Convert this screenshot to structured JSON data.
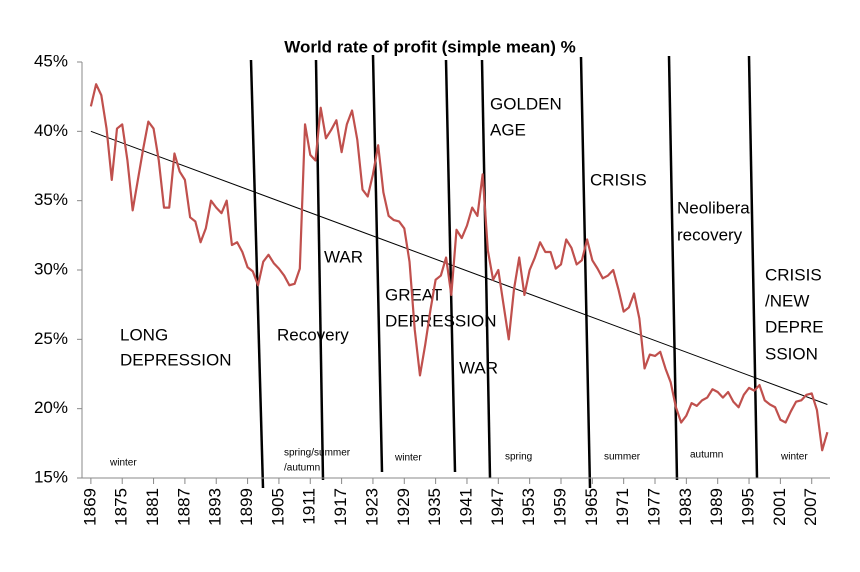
{
  "chart_data": {
    "type": "line",
    "title": "World rate of profit (simple mean) %",
    "x": [
      1869,
      1870,
      1871,
      1872,
      1873,
      1874,
      1875,
      1876,
      1877,
      1878,
      1879,
      1880,
      1881,
      1882,
      1883,
      1884,
      1885,
      1886,
      1887,
      1888,
      1889,
      1890,
      1891,
      1892,
      1893,
      1894,
      1895,
      1896,
      1897,
      1898,
      1899,
      1900,
      1901,
      1902,
      1903,
      1904,
      1905,
      1906,
      1907,
      1908,
      1909,
      1910,
      1911,
      1912,
      1913,
      1914,
      1915,
      1916,
      1917,
      1918,
      1919,
      1920,
      1921,
      1922,
      1923,
      1924,
      1925,
      1926,
      1927,
      1928,
      1929,
      1930,
      1931,
      1932,
      1933,
      1934,
      1935,
      1936,
      1937,
      1938,
      1939,
      1940,
      1941,
      1942,
      1943,
      1944,
      1945,
      1946,
      1947,
      1948,
      1949,
      1950,
      1951,
      1952,
      1953,
      1954,
      1955,
      1956,
      1957,
      1958,
      1959,
      1960,
      1961,
      1962,
      1963,
      1964,
      1965,
      1966,
      1967,
      1968,
      1969,
      1970,
      1971,
      1972,
      1973,
      1974,
      1975,
      1976,
      1977,
      1978,
      1979,
      1980,
      1981,
      1982,
      1983,
      1984,
      1985,
      1986,
      1987,
      1988,
      1989,
      1990,
      1991,
      1992,
      1993,
      1994,
      1995,
      1996,
      1997,
      1998,
      1999,
      2000,
      2001,
      2002,
      2003,
      2004,
      2005,
      2006,
      2007,
      2008,
      2009,
      2010
    ],
    "series": [
      {
        "color": "#c0504d",
        "values": [
          41.8,
          43.4,
          42.6,
          40.2,
          36.5,
          40.2,
          40.5,
          37.9,
          34.3,
          36.5,
          38.7,
          40.7,
          40.2,
          37.9,
          34.5,
          34.5,
          38.4,
          37.1,
          36.5,
          33.8,
          33.5,
          32.0,
          33.0,
          35.0,
          34.5,
          34.1,
          35.0,
          31.8,
          32.0,
          31.3,
          30.2,
          29.9,
          28.9,
          30.6,
          31.1,
          30.5,
          30.1,
          29.6,
          28.9,
          29.0,
          30.1,
          40.5,
          38.3,
          37.9,
          41.7,
          39.5,
          40.1,
          40.8,
          38.5,
          40.5,
          41.5,
          39.4,
          35.8,
          35.3,
          36.9,
          39.0,
          35.6,
          33.9,
          33.6,
          33.5,
          33.0,
          30.6,
          25.7,
          22.4,
          24.6,
          27.1,
          29.3,
          29.6,
          30.9,
          28.2,
          32.9,
          32.3,
          33.2,
          34.5,
          33.9,
          36.9,
          31.4,
          29.3,
          30.0,
          27.5,
          25.0,
          28.6,
          30.9,
          28.2,
          30.0,
          30.9,
          32.0,
          31.3,
          31.3,
          30.1,
          30.4,
          32.2,
          31.6,
          30.4,
          30.7,
          32.2,
          30.7,
          30.1,
          29.4,
          29.6,
          30.0,
          28.6,
          27.0,
          27.3,
          28.3,
          26.5,
          22.9,
          23.9,
          23.8,
          24.1,
          22.9,
          21.9,
          20.1,
          19.0,
          19.5,
          20.4,
          20.2,
          20.6,
          20.8,
          21.4,
          21.2,
          20.8,
          21.2,
          20.5,
          20.1,
          21.0,
          21.5,
          21.3,
          21.7,
          20.6,
          20.3,
          20.1,
          19.2,
          19.0,
          19.8,
          20.5,
          20.6,
          21.0,
          21.1,
          19.9,
          17.0,
          18.3
        ]
      }
    ],
    "trend": {
      "x": [
        1869,
        2010
      ],
      "values": [
        40.0,
        20.3
      ],
      "color": "#000000"
    },
    "xlim": [
      1867.3,
      2010.5
    ],
    "xticks": [
      1869,
      1875,
      1881,
      1887,
      1893,
      1899,
      1905,
      1911,
      1917,
      1923,
      1929,
      1935,
      1941,
      1947,
      1953,
      1959,
      1965,
      1971,
      1977,
      1983,
      1989,
      1995,
      2001,
      2007
    ],
    "ylim": [
      15,
      45
    ],
    "yticks": [
      {
        "value": 15,
        "label": "15%"
      },
      {
        "value": 20,
        "label": "20%"
      },
      {
        "value": 25,
        "label": "25%"
      },
      {
        "value": 30,
        "label": "30%"
      },
      {
        "value": 35,
        "label": "35%"
      },
      {
        "value": 40,
        "label": "40%"
      },
      {
        "value": 45,
        "label": "45%"
      }
    ],
    "annotations": [
      "LONG",
      "DEPRESSION",
      "Recovery",
      "WAR",
      "GREAT",
      "DEPRESSION",
      "WAR",
      "GOLDEN",
      "AGE",
      "CRISIS",
      "Neoliberal",
      "recovery",
      "CRISIS",
      "/NEW",
      "DEPRE",
      "SSION"
    ],
    "seasons": [
      "winter",
      "spring/summer",
      "/autumn",
      "winter",
      "spring",
      "summer",
      "autumn",
      "winter"
    ]
  }
}
